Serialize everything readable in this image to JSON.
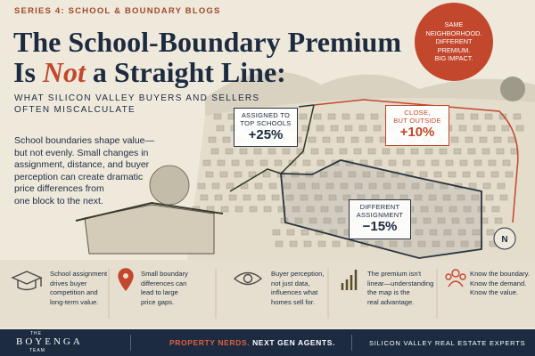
{
  "series_label": "SERIES 4: SCHOOL & BOUNDARY BLOGS",
  "title": {
    "line1": "The School-Boundary Premium",
    "line2_start": "Is ",
    "line2_emphasis": "Not",
    "line2_end": " a Straight Line:"
  },
  "subtitle": {
    "lines": [
      "WHAT SILICON VALLEY BUYERS AND SELLERS",
      "OFTEN MISCALCULATE"
    ]
  },
  "body": {
    "lines": [
      "School boundaries shape value—",
      "but not evenly. Small changes in",
      "assignment, distance, and buyer",
      "perception can create dramatic",
      "price differences from",
      "one block to the next."
    ]
  },
  "badge": {
    "lines": [
      "SAME",
      "NEIGHBORHOOD.",
      "DIFFERENT",
      "PREMIUM.",
      "BIG IMPACT."
    ]
  },
  "callouts": [
    {
      "label_lines": [
        "ASSIGNED TO",
        "TOP SCHOOLS"
      ],
      "value": "+25%"
    },
    {
      "label_lines": [
        "CLOSE,",
        "BUT OUTSIDE"
      ],
      "value": "+10%"
    },
    {
      "label_lines": [
        "DIFFERENT",
        "ASSIGNMENT"
      ],
      "value": "−15%"
    }
  ],
  "compass": "N",
  "features": [
    {
      "lines": [
        "School assignment",
        "drives buyer",
        "competition and",
        "long-term value."
      ]
    },
    {
      "lines": [
        "Small boundary",
        "differences can",
        "lead to large",
        "price gaps."
      ]
    },
    {
      "lines": [
        "Buyer perception,",
        "not just data,",
        "influences what",
        "homes sell for."
      ]
    },
    {
      "lines": [
        "The premium isn't",
        "linear—understanding",
        "the map is the",
        "real advantage."
      ]
    },
    {
      "lines": [
        "Know the boundary.",
        "Know the demand.",
        "Know the value."
      ]
    }
  ],
  "footer": {
    "logo_top": "THE",
    "logo_main": "BOYENGA",
    "logo_bottom": "TEAM",
    "tagline_red": "PROPERTY NERDS.",
    "tagline_dark": "NEXT GEN AGENTS.",
    "right": "SILICON VALLEY REAL ESTATE EXPERTS"
  }
}
